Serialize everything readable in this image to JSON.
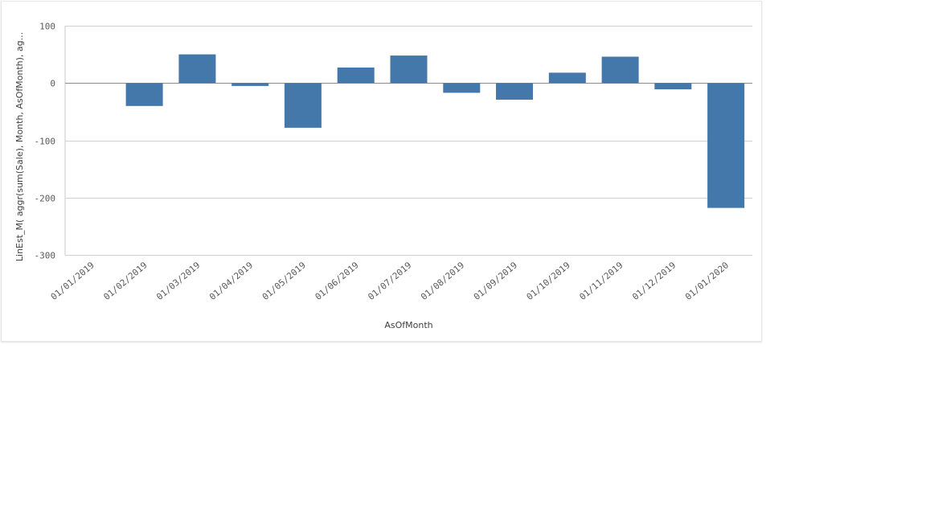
{
  "chart_data": {
    "type": "bar",
    "title": "",
    "xlabel": "AsOfMonth",
    "ylabel": "LinEst_M( aggr(sum(Sale), Month, AsOfMonth), ag...",
    "categories": [
      "01/01/2019",
      "01/02/2019",
      "01/03/2019",
      "01/04/2019",
      "01/05/2019",
      "01/06/2019",
      "01/07/2019",
      "01/08/2019",
      "01/09/2019",
      "01/10/2019",
      "01/11/2019",
      "01/12/2019",
      "01/01/2020"
    ],
    "values": [
      0,
      -40,
      50,
      -5,
      -78,
      27,
      48,
      -17,
      -29,
      18,
      46,
      -11,
      -218
    ],
    "ylim": [
      -300,
      100
    ],
    "yticks": [
      100,
      0,
      -100,
      -200,
      -300
    ],
    "grid": true,
    "bar_color": "#4477aa",
    "gridline_color": "#d0d0d0",
    "zero_line_color": "#8c8c8c"
  }
}
